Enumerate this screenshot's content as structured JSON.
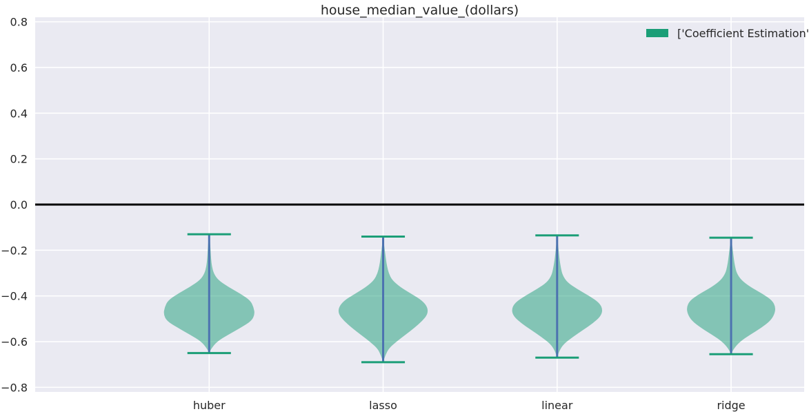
{
  "chart_data": {
    "type": "violin",
    "title": "house_median_value_(dollars)",
    "xlabel": "",
    "ylabel": "",
    "ylim": [
      -0.82,
      0.82
    ],
    "yticks": [
      -0.8,
      -0.6,
      -0.4,
      -0.2,
      0.0,
      0.2,
      0.4,
      0.6,
      0.8
    ],
    "ytick_labels": [
      "−0.8",
      "−0.6",
      "−0.4",
      "−0.2",
      "0.0",
      "0.2",
      "0.4",
      "0.6",
      "0.8"
    ],
    "categories": [
      "huber",
      "lasso",
      "linear",
      "ridge"
    ],
    "reference_line_y": 0.0,
    "grid": true,
    "legend": {
      "label": "['Coefficient Estimation']",
      "placement": "top-right"
    },
    "series": [
      {
        "name": "['Coefficient Estimation']",
        "violins": [
          {
            "category": "huber",
            "min": -0.65,
            "max": -0.13,
            "profile": [
              [
                -0.65,
                0.0
              ],
              [
                -0.63,
                0.04
              ],
              [
                -0.6,
                0.14
              ],
              [
                -0.57,
                0.34
              ],
              [
                -0.54,
                0.56
              ],
              [
                -0.51,
                0.76
              ],
              [
                -0.48,
                0.82
              ],
              [
                -0.45,
                0.8
              ],
              [
                -0.42,
                0.74
              ],
              [
                -0.39,
                0.56
              ],
              [
                -0.36,
                0.34
              ],
              [
                -0.33,
                0.16
              ],
              [
                -0.3,
                0.08
              ],
              [
                -0.27,
                0.05
              ],
              [
                -0.24,
                0.035
              ],
              [
                -0.2,
                0.025
              ],
              [
                -0.16,
                0.015
              ],
              [
                -0.13,
                0.0
              ]
            ]
          },
          {
            "category": "lasso",
            "min": -0.69,
            "max": -0.14,
            "profile": [
              [
                -0.69,
                0.0
              ],
              [
                -0.66,
                0.04
              ],
              [
                -0.63,
                0.1
              ],
              [
                -0.6,
                0.24
              ],
              [
                -0.57,
                0.4
              ],
              [
                -0.54,
                0.56
              ],
              [
                -0.51,
                0.7
              ],
              [
                -0.48,
                0.8
              ],
              [
                -0.45,
                0.8
              ],
              [
                -0.42,
                0.7
              ],
              [
                -0.39,
                0.5
              ],
              [
                -0.36,
                0.3
              ],
              [
                -0.33,
                0.16
              ],
              [
                -0.3,
                0.1
              ],
              [
                -0.27,
                0.07
              ],
              [
                -0.24,
                0.05
              ],
              [
                -0.2,
                0.03
              ],
              [
                -0.17,
                0.015
              ],
              [
                -0.14,
                0.0
              ]
            ]
          },
          {
            "category": "linear",
            "min": -0.67,
            "max": -0.135,
            "profile": [
              [
                -0.67,
                0.0
              ],
              [
                -0.64,
                0.04
              ],
              [
                -0.61,
                0.12
              ],
              [
                -0.58,
                0.28
              ],
              [
                -0.55,
                0.46
              ],
              [
                -0.52,
                0.64
              ],
              [
                -0.49,
                0.78
              ],
              [
                -0.46,
                0.82
              ],
              [
                -0.43,
                0.76
              ],
              [
                -0.4,
                0.58
              ],
              [
                -0.37,
                0.36
              ],
              [
                -0.34,
                0.18
              ],
              [
                -0.31,
                0.1
              ],
              [
                -0.28,
                0.07
              ],
              [
                -0.25,
                0.05
              ],
              [
                -0.21,
                0.03
              ],
              [
                -0.17,
                0.015
              ],
              [
                -0.135,
                0.0
              ]
            ]
          },
          {
            "category": "ridge",
            "min": -0.655,
            "max": -0.145,
            "profile": [
              [
                -0.655,
                0.0
              ],
              [
                -0.63,
                0.05
              ],
              [
                -0.6,
                0.16
              ],
              [
                -0.57,
                0.34
              ],
              [
                -0.54,
                0.54
              ],
              [
                -0.51,
                0.7
              ],
              [
                -0.48,
                0.78
              ],
              [
                -0.45,
                0.8
              ],
              [
                -0.42,
                0.74
              ],
              [
                -0.39,
                0.56
              ],
              [
                -0.36,
                0.34
              ],
              [
                -0.33,
                0.18
              ],
              [
                -0.3,
                0.1
              ],
              [
                -0.27,
                0.07
              ],
              [
                -0.24,
                0.05
              ],
              [
                -0.2,
                0.03
              ],
              [
                -0.17,
                0.015
              ],
              [
                -0.145,
                0.0
              ]
            ]
          }
        ]
      }
    ]
  },
  "colors": {
    "plot_background": "#eaeaf2",
    "grid": "#ffffff",
    "violin_fill": "#1b9e77",
    "violin_fill_opacity": 0.5,
    "whisker": "#1b9e77",
    "median_line": "#4c72b0",
    "zero_line": "#000000",
    "legend_patch": "#1b9e77"
  }
}
